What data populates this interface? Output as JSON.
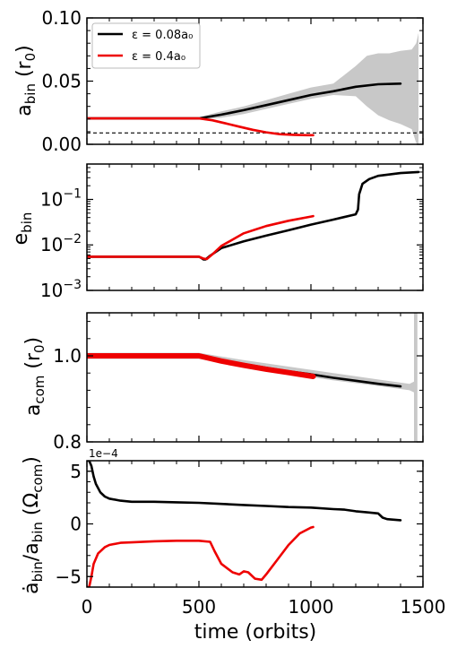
{
  "colors": {
    "black": "#000000",
    "red": "#ee0000",
    "gray": "#c8c8c8"
  },
  "x_axis": {
    "label": "time (orbits)",
    "ticks": [
      {
        "v": 0,
        "t": "0"
      },
      {
        "v": 500,
        "t": "500"
      },
      {
        "v": 1000,
        "t": "1000"
      },
      {
        "v": 1500,
        "t": "1500"
      }
    ],
    "range": [
      0,
      1500
    ]
  },
  "legend": {
    "placement": "top-left",
    "entries": [
      {
        "label": "ε = 0.08a₀",
        "color": "#000000"
      },
      {
        "label": "ε = 0.4a₀",
        "color": "#ee0000"
      }
    ]
  },
  "chart_data": [
    {
      "type": "line",
      "ylabel": "a_bin (r₀)",
      "ylim": [
        0.0,
        0.1
      ],
      "yticks": [
        {
          "v": 0.0,
          "t": "0.00"
        },
        {
          "v": 0.05,
          "t": "0.05"
        },
        {
          "v": 0.1,
          "t": "0.10"
        }
      ],
      "reference_line": {
        "y": 0.009,
        "style": "dashed"
      },
      "band": {
        "x": [
          500,
          600,
          700,
          800,
          900,
          1000,
          1100,
          1200,
          1250,
          1300,
          1350,
          1400,
          1450,
          1470,
          1480
        ],
        "lower": [
          0.0195,
          0.021,
          0.024,
          0.028,
          0.032,
          0.036,
          0.039,
          0.038,
          0.03,
          0.023,
          0.019,
          0.016,
          0.012,
          0.001,
          0.0
        ],
        "upper": [
          0.0215,
          0.026,
          0.03,
          0.035,
          0.04,
          0.045,
          0.048,
          0.062,
          0.07,
          0.072,
          0.072,
          0.074,
          0.075,
          0.08,
          0.088
        ]
      },
      "series": [
        {
          "color": "#000000",
          "x": [
            0,
            500,
            600,
            700,
            800,
            900,
            1000,
            1100,
            1200,
            1300,
            1400
          ],
          "y": [
            0.0205,
            0.0205,
            0.0235,
            0.027,
            0.031,
            0.035,
            0.039,
            0.042,
            0.0455,
            0.0475,
            0.048
          ]
        },
        {
          "color": "#ee0000",
          "x": [
            0,
            500,
            560,
            620,
            680,
            740,
            800,
            860,
            920,
            980,
            1010
          ],
          "y": [
            0.0205,
            0.0205,
            0.019,
            0.0165,
            0.014,
            0.0115,
            0.0095,
            0.008,
            0.0075,
            0.0072,
            0.0072
          ]
        }
      ]
    },
    {
      "type": "line",
      "ylabel": "e_bin",
      "yscale": "log",
      "ylim": [
        0.001,
        0.6
      ],
      "yticks": [
        {
          "v": 0.001,
          "b": "10",
          "e": "−3"
        },
        {
          "v": 0.01,
          "b": "10",
          "e": "−2"
        },
        {
          "v": 0.1,
          "b": "10",
          "e": "−1"
        }
      ],
      "series": [
        {
          "color": "#000000",
          "x": [
            0,
            500,
            510,
            520,
            530,
            550,
            600,
            700,
            800,
            900,
            1000,
            1100,
            1200,
            1210,
            1215,
            1230,
            1260,
            1300,
            1400,
            1480
          ],
          "y": [
            0.0055,
            0.0055,
            0.0052,
            0.0048,
            0.0048,
            0.0058,
            0.0085,
            0.012,
            0.016,
            0.021,
            0.028,
            0.036,
            0.047,
            0.06,
            0.13,
            0.22,
            0.28,
            0.33,
            0.38,
            0.4
          ]
        },
        {
          "color": "#ee0000",
          "x": [
            0,
            500,
            520,
            535,
            560,
            600,
            700,
            800,
            900,
            1000,
            1010
          ],
          "y": [
            0.0055,
            0.0055,
            0.005,
            0.0049,
            0.0062,
            0.0095,
            0.018,
            0.026,
            0.034,
            0.042,
            0.043
          ]
        }
      ]
    },
    {
      "type": "line",
      "ylabel": "a_com (r₀)",
      "ylim": [
        0.8,
        1.1
      ],
      "yticks": [
        {
          "v": 0.8,
          "t": "0.8"
        },
        {
          "v": 1.0,
          "t": "1.0"
        }
      ],
      "band": {
        "x": [
          0,
          500,
          700,
          900,
          1100,
          1300,
          1440,
          1460
        ],
        "lower": [
          0.993,
          0.993,
          0.975,
          0.958,
          0.943,
          0.93,
          0.92,
          0.915
        ],
        "upper": [
          1.007,
          1.007,
          0.99,
          0.975,
          0.96,
          0.945,
          0.935,
          0.94
        ]
      },
      "band2": {
        "x": [
          1460,
          1475
        ],
        "lower": [
          0.8,
          0.8
        ],
        "upper": [
          1.1,
          1.1
        ]
      },
      "series": [
        {
          "color": "#000000",
          "x": [
            0,
            500,
            600,
            700,
            800,
            900,
            1000,
            1100,
            1200,
            1300,
            1400
          ],
          "y": [
            1.0,
            1.0,
            0.99,
            0.981,
            0.972,
            0.964,
            0.957,
            0.949,
            0.942,
            0.935,
            0.929
          ]
        },
        {
          "color": "#ee0000",
          "thick": true,
          "x": [
            0,
            500,
            600,
            700,
            800,
            900,
            1000,
            1010
          ],
          "y": [
            1.0,
            1.0,
            0.988,
            0.978,
            0.969,
            0.961,
            0.953,
            0.952
          ]
        }
      ]
    },
    {
      "type": "line",
      "ylabel": "ȧ_bin/a_bin (Ω_com)",
      "ylim": [
        -6,
        6
      ],
      "multiplier": "1e−4",
      "yticks": [
        {
          "v": -5,
          "t": "−5"
        },
        {
          "v": 0,
          "t": "0"
        },
        {
          "v": 5,
          "t": "5"
        }
      ],
      "series": [
        {
          "color": "#000000",
          "x": [
            0,
            10,
            20,
            30,
            40,
            60,
            80,
            100,
            150,
            200,
            300,
            400,
            500,
            600,
            700,
            800,
            900,
            1000,
            1100,
            1150,
            1200,
            1250,
            1300,
            1320,
            1340,
            1400
          ],
          "y": [
            6.0,
            6.0,
            5.5,
            4.5,
            3.8,
            3.0,
            2.6,
            2.4,
            2.2,
            2.1,
            2.1,
            2.05,
            2.0,
            1.9,
            1.8,
            1.7,
            1.6,
            1.55,
            1.4,
            1.35,
            1.2,
            1.1,
            1.0,
            0.6,
            0.45,
            0.35
          ]
        },
        {
          "color": "#ee0000",
          "x": [
            0,
            10,
            20,
            30,
            50,
            80,
            100,
            150,
            200,
            300,
            400,
            500,
            550,
            570,
            600,
            650,
            680,
            700,
            720,
            750,
            780,
            800,
            850,
            900,
            950,
            1000,
            1010
          ],
          "y": [
            -6.0,
            -6.0,
            -5.0,
            -3.8,
            -2.8,
            -2.2,
            -2.0,
            -1.8,
            -1.75,
            -1.65,
            -1.6,
            -1.6,
            -1.7,
            -2.6,
            -3.8,
            -4.6,
            -4.8,
            -4.5,
            -4.6,
            -5.2,
            -5.3,
            -4.8,
            -3.4,
            -2.0,
            -0.9,
            -0.35,
            -0.3
          ]
        }
      ]
    }
  ]
}
